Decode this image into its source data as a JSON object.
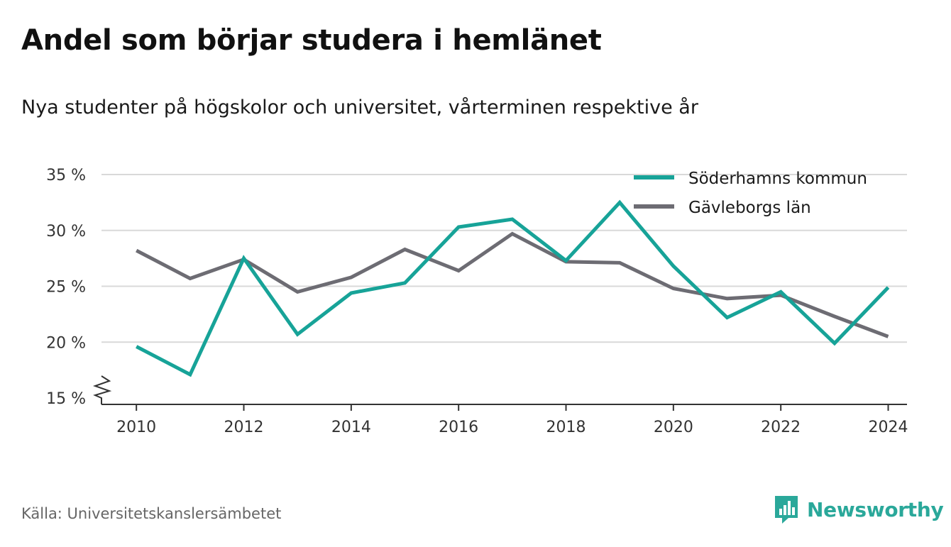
{
  "title": "Andel som börjar studera i hemlänet",
  "subtitle": "Nya studenter på högskolor och universitet, vårterminen respektive år",
  "source": "Källa: Universitetskanslersämbetet",
  "brand": {
    "name": "Newsworthy",
    "icon": "newsworthy-logo-icon",
    "color": "#2aa89a"
  },
  "chart_data": {
    "type": "line",
    "x": [
      2010,
      2011,
      2012,
      2013,
      2014,
      2015,
      2016,
      2017,
      2018,
      2019,
      2020,
      2021,
      2022,
      2023,
      2024
    ],
    "series": [
      {
        "name": "Söderhamns kommun",
        "color": "#17a398",
        "values": [
          19.6,
          17.1,
          27.5,
          20.7,
          24.4,
          25.3,
          30.3,
          31.0,
          27.3,
          32.5,
          26.8,
          22.2,
          24.5,
          19.9,
          24.9
        ]
      },
      {
        "name": "Gävleborgs län",
        "color": "#6d6c73",
        "values": [
          28.2,
          25.7,
          27.4,
          24.5,
          25.8,
          28.3,
          26.4,
          29.7,
          27.2,
          27.1,
          24.8,
          23.9,
          24.2,
          22.3,
          20.5
        ]
      }
    ],
    "xticks": [
      2010,
      2012,
      2014,
      2016,
      2018,
      2020,
      2022,
      2024
    ],
    "xtick_labels": [
      "2010",
      "2012",
      "2014",
      "2016",
      "2018",
      "2020",
      "2022",
      "2024"
    ],
    "yticks": [
      15,
      20,
      25,
      30,
      35
    ],
    "ytick_labels": [
      "15 %",
      "20 %",
      "25 %",
      "30 %",
      "35 %"
    ],
    "ylim": [
      15,
      35
    ],
    "xlim": [
      2009.35,
      2024.35
    ],
    "y_axis_break": true,
    "grid": "horizontal",
    "legend_position": "top-right"
  }
}
